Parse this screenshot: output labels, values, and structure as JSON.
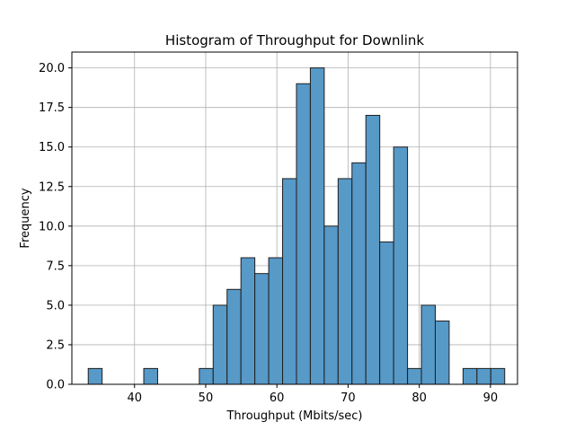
{
  "chart_data": {
    "type": "bar",
    "title": "Histogram of Throughput for Downlink",
    "xlabel": "Throughput (Mbits/sec)",
    "ylabel": "Frequency",
    "xlim": [
      31.2,
      93.8
    ],
    "ylim": [
      0,
      21
    ],
    "grid": true,
    "bar_color": "#5799c7",
    "edge_color": "#1f1f1f",
    "bin_start": 33.5,
    "bin_width": 1.95,
    "values": [
      1,
      0,
      0,
      0,
      1,
      0,
      0,
      0,
      1,
      5,
      6,
      8,
      7,
      8,
      13,
      19,
      20,
      10,
      13,
      14,
      17,
      9,
      15,
      1,
      5,
      4,
      0,
      1,
      1,
      1
    ],
    "x_ticks": [
      {
        "value": 40,
        "label": "40"
      },
      {
        "value": 50,
        "label": "50"
      },
      {
        "value": 60,
        "label": "60"
      },
      {
        "value": 70,
        "label": "70"
      },
      {
        "value": 80,
        "label": "80"
      },
      {
        "value": 90,
        "label": "90"
      }
    ],
    "y_ticks": [
      {
        "value": 0,
        "label": "0.0"
      },
      {
        "value": 2.5,
        "label": "2.5"
      },
      {
        "value": 5,
        "label": "5.0"
      },
      {
        "value": 7.5,
        "label": "7.5"
      },
      {
        "value": 10,
        "label": "10.0"
      },
      {
        "value": 12.5,
        "label": "12.5"
      },
      {
        "value": 15,
        "label": "15.0"
      },
      {
        "value": 17.5,
        "label": "17.5"
      },
      {
        "value": 20,
        "label": "20.0"
      }
    ]
  }
}
